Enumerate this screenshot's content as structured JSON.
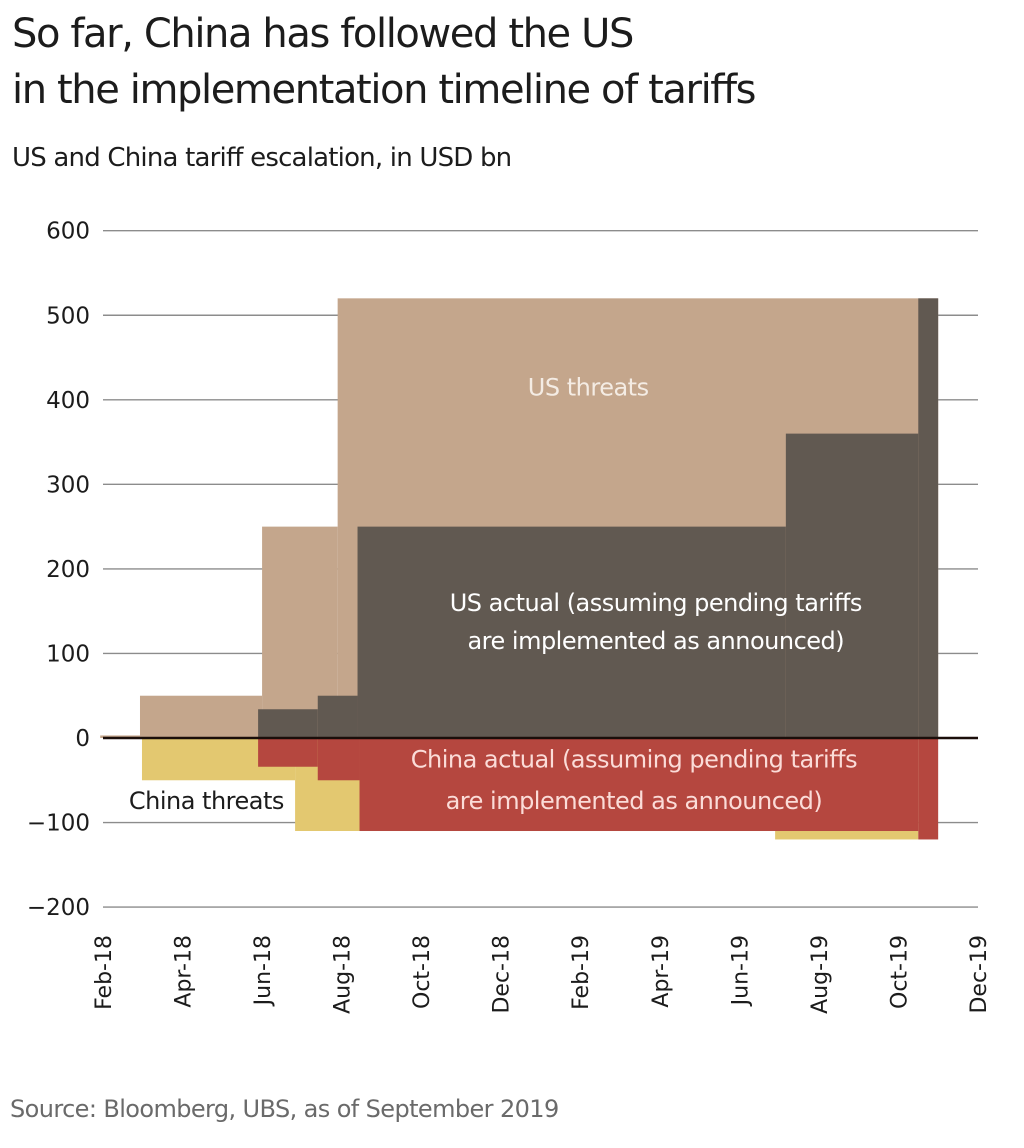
{
  "header": {
    "title_line1": "So far, China has followed the US",
    "title_line2": "in the implementation timeline of tariffs",
    "subtitle": "US and China tariff escalation, in USD bn"
  },
  "footer": {
    "source": "Source: Bloomberg, UBS, as of September 2019"
  },
  "chart_data": {
    "type": "area",
    "step": true,
    "title": "US and China tariff escalation, in USD bn",
    "xlabel": "",
    "ylabel": "USD bn",
    "ylim": [
      -200,
      600
    ],
    "yticks": [
      600,
      500,
      400,
      300,
      200,
      100,
      0,
      -100,
      -200
    ],
    "ytick_labels": [
      "600",
      "500",
      "400",
      "300",
      "200",
      "100",
      "0",
      "−100",
      "−200"
    ],
    "x_start": "Jan-18",
    "x_end": "Dec-19",
    "xtick_labels": [
      "Feb-18",
      "Apr-18",
      "Jun-18",
      "Aug-18",
      "Oct-18",
      "Dec-18",
      "Feb-19",
      "Apr-19",
      "Jun-19",
      "Aug-19",
      "Oct-19",
      "Dec-19"
    ],
    "grid": true,
    "colors": {
      "us_threats": "#c4a68c",
      "us_actual": "#615951",
      "china_threats": "#e3c870",
      "china_actual": "#b5473f",
      "gridline": "#8c8c8c",
      "zero_line": "#1a0e0a"
    },
    "series": [
      {
        "name": "US threats",
        "color_key": "us_threats",
        "steps": [
          {
            "from": 0.93,
            "to": 1.93,
            "value": 3
          },
          {
            "from": 1.93,
            "to": 5.0,
            "value": 50
          },
          {
            "from": 5.0,
            "to": 6.9,
            "value": 250
          },
          {
            "from": 6.9,
            "to": 22.0,
            "value": 520
          }
        ]
      },
      {
        "name": "US actual (assuming pending tariffs are implemented as announced)",
        "color_key": "us_actual",
        "steps": [
          {
            "from": 4.9,
            "to": 6.4,
            "value": 34
          },
          {
            "from": 6.4,
            "to": 7.4,
            "value": 50
          },
          {
            "from": 7.4,
            "to": 18.17,
            "value": 250
          },
          {
            "from": 18.17,
            "to": 21.5,
            "value": 360
          },
          {
            "from": 21.5,
            "to": 22.0,
            "value": 520
          }
        ]
      },
      {
        "name": "China threats",
        "color_key": "china_threats",
        "steps": [
          {
            "from": 1.98,
            "to": 5.83,
            "value": -50
          },
          {
            "from": 5.83,
            "to": 7.45,
            "value": -110
          },
          {
            "from": 7.45,
            "to": 17.9,
            "value": -110
          },
          {
            "from": 17.9,
            "to": 21.5,
            "value": -120
          }
        ]
      },
      {
        "name": "China actual (assuming pending tariffs are implemented as announced)",
        "color_key": "china_actual",
        "steps": [
          {
            "from": 4.9,
            "to": 6.4,
            "value": -34
          },
          {
            "from": 6.4,
            "to": 7.45,
            "value": -50
          },
          {
            "from": 7.45,
            "to": 21.5,
            "value": -110
          },
          {
            "from": 21.5,
            "to": 22.0,
            "value": -120
          }
        ]
      }
    ],
    "annotations": [
      {
        "text": "US threats",
        "x": 13.2,
        "y": 405,
        "color": "#f4ece4"
      },
      {
        "text": "US actual (assuming pending tariffs",
        "x": 14.9,
        "y": 150,
        "color": "#ffffff"
      },
      {
        "text": "are implemented as announced)",
        "x": 14.9,
        "y": 105,
        "color": "#ffffff"
      },
      {
        "text": "China actual (assuming pending tariffs",
        "x": 14.35,
        "y": -35,
        "color": "#fbdcd8"
      },
      {
        "text": "are implemented as announced)",
        "x": 14.35,
        "y": -84,
        "color": "#fbdcd8"
      },
      {
        "text": "China threats",
        "x": 3.6,
        "y": -84,
        "color": "#1c1c1c",
        "boxed": true
      }
    ]
  }
}
